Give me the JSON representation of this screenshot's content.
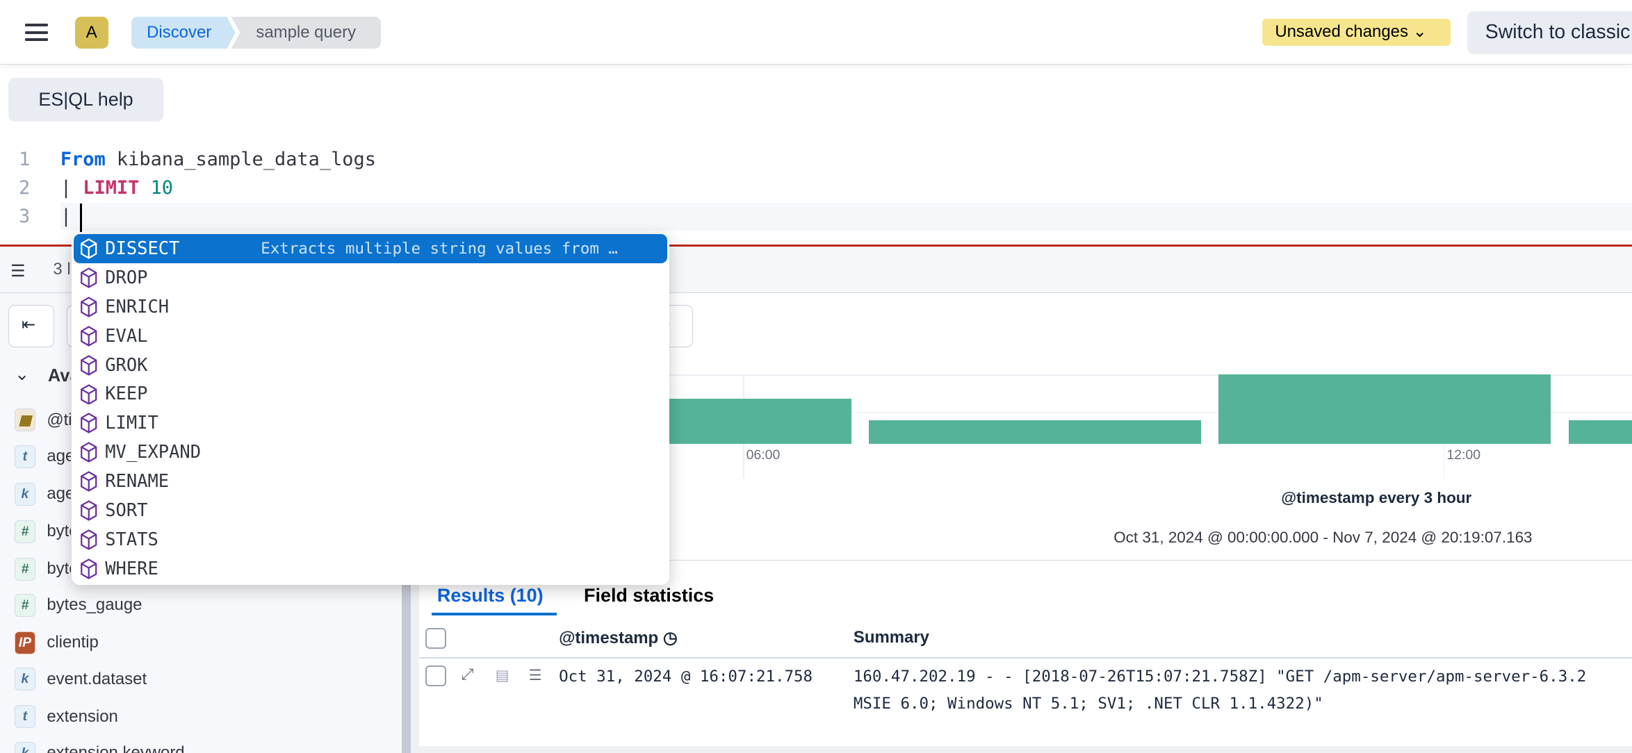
{
  "header": {
    "avatar": "A",
    "breadcrumbs": [
      "Discover",
      "sample query"
    ],
    "unsaved": "Unsaved changes",
    "switch_label": "Switch to classic"
  },
  "editor": {
    "help_label": "ES|QL help",
    "lines": [
      {
        "n": "1",
        "kw": "From",
        "rest": " kibana_sample_data_logs"
      },
      {
        "n": "2",
        "pipe": "| ",
        "kw": "LIMIT",
        "num": " 10"
      },
      {
        "n": "3",
        "pipe": "|"
      }
    ]
  },
  "status": {
    "text": "3 l"
  },
  "sidebar": {
    "section": "Available fields",
    "fields": [
      {
        "name": "@timestamp",
        "type": "date"
      },
      {
        "name": "agent",
        "type": "t"
      },
      {
        "name": "agent.keyword",
        "type": "k"
      },
      {
        "name": "bytes",
        "type": "#"
      },
      {
        "name": "bytes_counter",
        "type": "#"
      },
      {
        "name": "bytes_gauge",
        "type": "#"
      },
      {
        "name": "clientip",
        "type": "IP"
      },
      {
        "name": "event.dataset",
        "type": "k"
      },
      {
        "name": "extension",
        "type": "t"
      },
      {
        "name": "extension.keyword",
        "type": "k"
      }
    ]
  },
  "autocomplete": {
    "items": [
      {
        "label": "DISSECT",
        "desc": "Extracts multiple string values from …",
        "selected": true
      },
      {
        "label": "DROP"
      },
      {
        "label": "ENRICH"
      },
      {
        "label": "EVAL"
      },
      {
        "label": "GROK"
      },
      {
        "label": "KEEP"
      },
      {
        "label": "LIMIT"
      },
      {
        "label": "MV_EXPAND"
      },
      {
        "label": "RENAME"
      },
      {
        "label": "SORT"
      },
      {
        "label": "STATS"
      },
      {
        "label": "WHERE"
      }
    ]
  },
  "chart": {
    "interval_label": "@timestamp every 3 hour",
    "range": "Oct 31, 2024 @ 00:00:00.000 - Nov 7, 2024 @ 20:19:07.163",
    "ticks": [
      "06:00",
      "12:00"
    ],
    "bar_color": "#54b399"
  },
  "results": {
    "tabs": [
      "Results (10)",
      "Field statistics"
    ],
    "columns": [
      "@timestamp",
      "Summary"
    ],
    "rows": [
      {
        "timestamp": "Oct 31, 2024 @ 16:07:21.758",
        "summary1": "160.47.202.19 - - [2018-07-26T15:07:21.758Z] \"GET /apm-server/apm-server-6.3.2",
        "summary2": "MSIE 6.0; Windows NT 5.1; SV1; .NET CLR 1.1.4322)\""
      }
    ]
  },
  "colors": {
    "accent": "#0b64dd",
    "error_line": "#bd271e",
    "command_icon": "#6a2fa0"
  }
}
